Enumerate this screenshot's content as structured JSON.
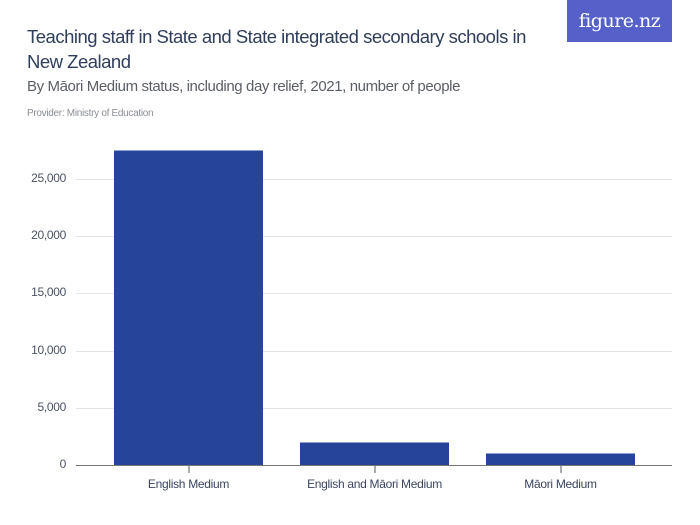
{
  "header": {
    "title": "Teaching staff in State and State integrated secondary schools in New Zealand",
    "subtitle": "By Māori Medium status, including day relief, 2021, number of people",
    "provider": "Provider: Ministry of Education",
    "logo_text": "figure.nz"
  },
  "colors": {
    "bar": "#26449a",
    "logo_bg": "#5561c8",
    "title": "#2f3e5c"
  },
  "chart_data": {
    "type": "bar",
    "title": "Teaching staff in State and State integrated secondary schools in New Zealand",
    "subtitle": "By Māori Medium status, including day relief, 2021, number of people",
    "xlabel": "",
    "ylabel": "",
    "categories": [
      "English Medium",
      "English and Māori Medium",
      "Māori Medium"
    ],
    "values": [
      27530,
      2010,
      1050
    ],
    "ylim": [
      0,
      27500
    ],
    "yticks": [
      0,
      5000,
      10000,
      15000,
      20000,
      25000
    ],
    "ytick_labels": [
      "0",
      "5,000",
      "10,000",
      "15,000",
      "20,000",
      "25,000"
    ],
    "grid": true,
    "legend": null
  }
}
